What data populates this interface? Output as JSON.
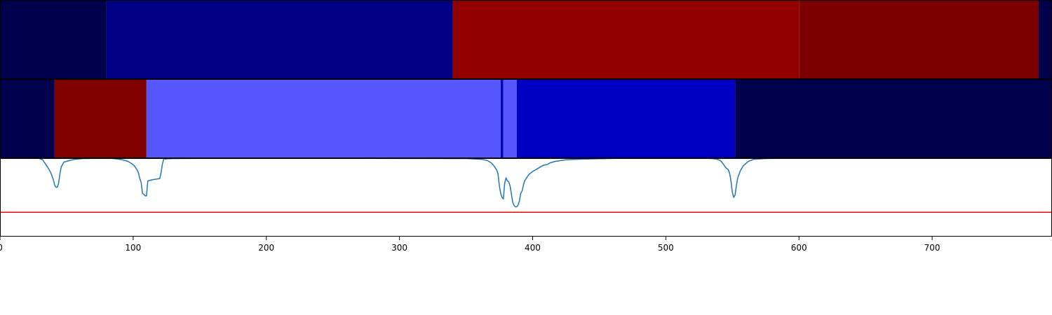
{
  "chart_data": [
    {
      "type": "heatmap",
      "row": 1,
      "xlim": [
        0,
        790
      ],
      "segments": [
        {
          "start": 0,
          "end": 80,
          "color": "#00004c"
        },
        {
          "start": 80,
          "end": 340,
          "color": "#000084"
        },
        {
          "start": 340,
          "end": 600,
          "color": "#920000"
        },
        {
          "start": 600,
          "end": 780,
          "color": "#7c0000"
        },
        {
          "start": 780,
          "end": 790,
          "color": "#00004c"
        }
      ]
    },
    {
      "type": "heatmap",
      "row": 2,
      "xlim": [
        0,
        790
      ],
      "segments": [
        {
          "start": 0,
          "end": 41,
          "color": "#00004c"
        },
        {
          "start": 41,
          "end": 110,
          "color": "#800000"
        },
        {
          "start": 110,
          "end": 376,
          "color": "#5757ff"
        },
        {
          "start": 376,
          "end": 378,
          "color": "#0000c0"
        },
        {
          "start": 378,
          "end": 388,
          "color": "#5757ff"
        },
        {
          "start": 388,
          "end": 552,
          "color": "#0000c4"
        },
        {
          "start": 552,
          "end": 790,
          "color": "#00004c"
        }
      ]
    },
    {
      "type": "line",
      "xlim": [
        0,
        790
      ],
      "ylim": [
        0,
        1
      ],
      "grid": false,
      "xticks": [
        0,
        100,
        200,
        300,
        400,
        500,
        600,
        700
      ],
      "series": [
        {
          "color": "#1f77b4",
          "points": [
            [
              0,
              1.0
            ],
            [
              29,
              1.0
            ],
            [
              32,
              0.98
            ],
            [
              34,
              0.93
            ],
            [
              36,
              0.88
            ],
            [
              38,
              0.82
            ],
            [
              40,
              0.73
            ],
            [
              41,
              0.66
            ],
            [
              42,
              0.63
            ],
            [
              43,
              0.63
            ],
            [
              44,
              0.68
            ],
            [
              45,
              0.8
            ],
            [
              46,
              0.89
            ],
            [
              48,
              0.95
            ],
            [
              52,
              0.97
            ],
            [
              56,
              0.985
            ],
            [
              62,
              0.995
            ],
            [
              75,
              1.0
            ],
            [
              82,
              1.0
            ],
            [
              88,
              0.99
            ],
            [
              92,
              0.98
            ],
            [
              96,
              0.96
            ],
            [
              99,
              0.93
            ],
            [
              101,
              0.9
            ],
            [
              103,
              0.85
            ],
            [
              104,
              0.81
            ],
            [
              105,
              0.74
            ],
            [
              106,
              0.69
            ],
            [
              107,
              0.55
            ],
            [
              108,
              0.54
            ],
            [
              109,
              0.52
            ],
            [
              110,
              0.52
            ],
            [
              111,
              0.71
            ],
            [
              113,
              0.72
            ],
            [
              116,
              0.73
            ],
            [
              120,
              0.74
            ],
            [
              121,
              0.82
            ],
            [
              122,
              0.93
            ],
            [
              123,
              0.99
            ],
            [
              130,
              0.995
            ],
            [
              150,
              0.998
            ],
            [
              200,
              1.0
            ],
            [
              350,
              0.995
            ],
            [
              362,
              0.985
            ],
            [
              366,
              0.97
            ],
            [
              369,
              0.94
            ],
            [
              371,
              0.9
            ],
            [
              373,
              0.85
            ],
            [
              374,
              0.8
            ],
            [
              375,
              0.65
            ],
            [
              376,
              0.55
            ],
            [
              377,
              0.5
            ],
            [
              378,
              0.48
            ],
            [
              379,
              0.68
            ],
            [
              380,
              0.75
            ],
            [
              381,
              0.71
            ],
            [
              382,
              0.7
            ],
            [
              383,
              0.65
            ],
            [
              384,
              0.55
            ],
            [
              385,
              0.44
            ],
            [
              386,
              0.4
            ],
            [
              387,
              0.38
            ],
            [
              388,
              0.38
            ],
            [
              389,
              0.4
            ],
            [
              390,
              0.45
            ],
            [
              391,
              0.55
            ],
            [
              392,
              0.58
            ],
            [
              393,
              0.65
            ],
            [
              394,
              0.71
            ],
            [
              397,
              0.79
            ],
            [
              400,
              0.83
            ],
            [
              403,
              0.86
            ],
            [
              405,
              0.88
            ],
            [
              408,
              0.91
            ],
            [
              411,
              0.92
            ],
            [
              413,
              0.94
            ],
            [
              417,
              0.96
            ],
            [
              425,
              0.98
            ],
            [
              440,
              0.99
            ],
            [
              442,
              0.99
            ],
            [
              470,
              1.0
            ],
            [
              530,
              1.0
            ],
            [
              538,
              0.99
            ],
            [
              541,
              0.97
            ],
            [
              543,
              0.93
            ],
            [
              545,
              0.88
            ],
            [
              547,
              0.85
            ],
            [
              548,
              0.8
            ],
            [
              549,
              0.7
            ],
            [
              550,
              0.56
            ],
            [
              551,
              0.5
            ],
            [
              552,
              0.53
            ],
            [
              553,
              0.65
            ],
            [
              554,
              0.75
            ],
            [
              556,
              0.84
            ],
            [
              558,
              0.9
            ],
            [
              562,
              0.96
            ],
            [
              566,
              0.985
            ],
            [
              575,
              0.995
            ],
            [
              600,
              1.0
            ],
            [
              790,
              1.0
            ]
          ]
        }
      ],
      "hline": {
        "y": 0.31,
        "color": "#ff0000"
      }
    }
  ]
}
